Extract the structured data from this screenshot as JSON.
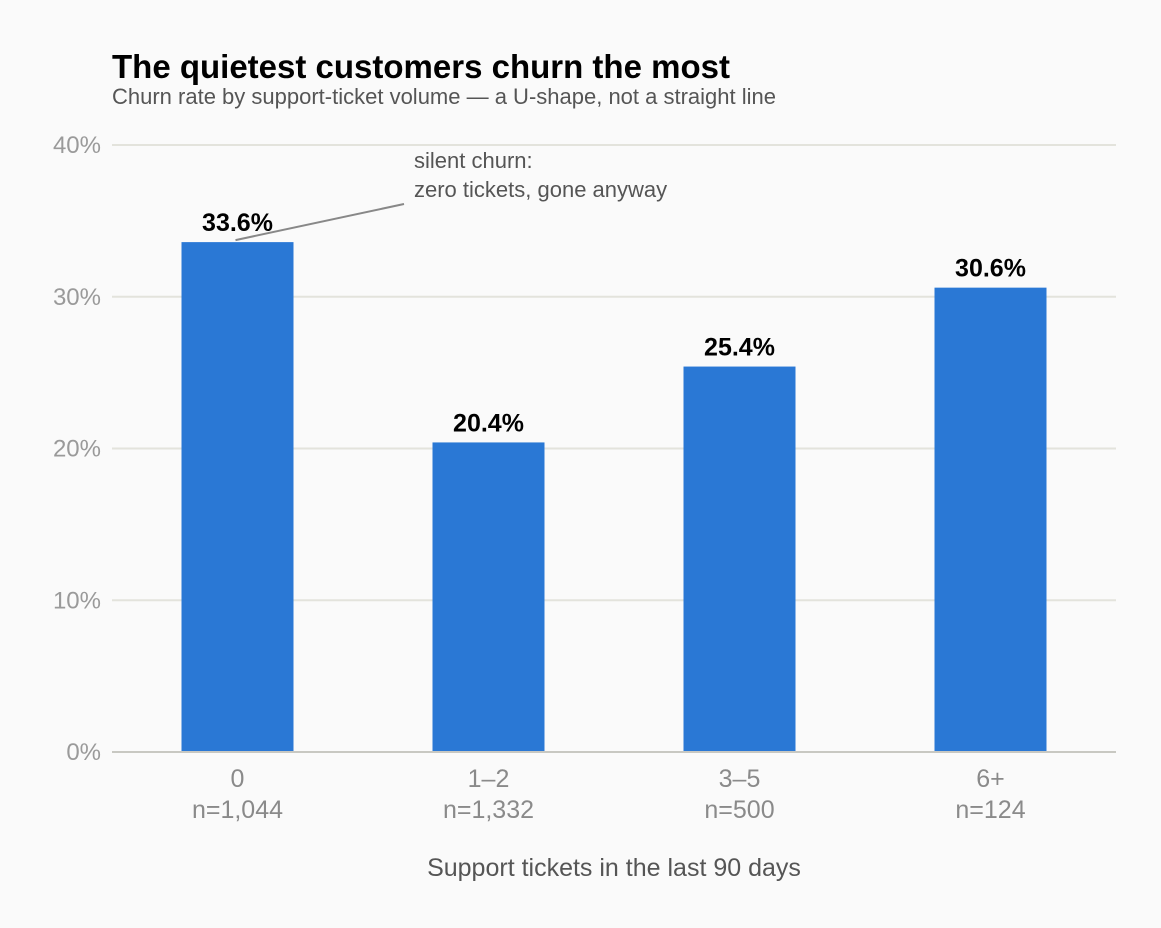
{
  "chart_data": {
    "type": "bar",
    "title": "The quietest customers churn the most",
    "subtitle": "Churn rate by support-ticket volume — a U-shape, not a straight line",
    "xlabel": "Support tickets in the last 90 days",
    "ylabel": "",
    "categories": [
      "0",
      "1–2",
      "3–5",
      "6+"
    ],
    "sample_sizes": [
      "n=1,044",
      "n=1,332",
      "n=500",
      "n=124"
    ],
    "values": [
      33.6,
      20.4,
      25.4,
      30.6
    ],
    "value_labels": [
      "33.6%",
      "20.4%",
      "25.4%",
      "30.6%"
    ],
    "ylim": [
      0,
      40
    ],
    "yticks": [
      0,
      10,
      20,
      30,
      40
    ],
    "ytick_labels": [
      "0%",
      "10%",
      "20%",
      "30%",
      "40%"
    ],
    "grid": true,
    "bar_color": "#2a78d5",
    "annotation": {
      "lines": [
        "silent churn:",
        "zero tickets, gone anyway"
      ],
      "target_category": "0"
    }
  }
}
